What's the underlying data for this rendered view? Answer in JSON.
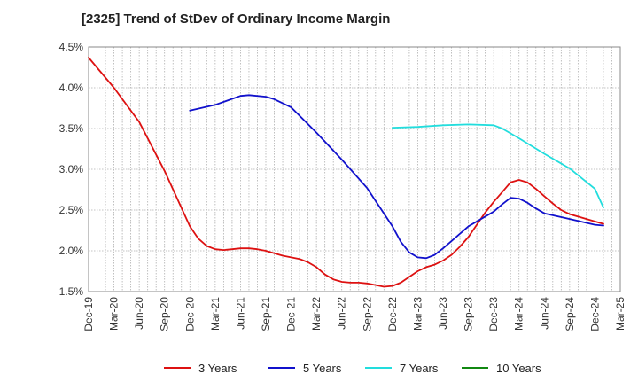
{
  "chart_data": {
    "type": "line",
    "title": "[2325]  Trend of StDev of Ordinary Income Margin",
    "xlabel": "",
    "ylabel": "",
    "x_ticks": [
      "Dec-19",
      "Mar-20",
      "Jun-20",
      "Sep-20",
      "Dec-20",
      "Mar-21",
      "Jun-21",
      "Sep-21",
      "Dec-21",
      "Mar-22",
      "Jun-22",
      "Sep-22",
      "Dec-22",
      "Mar-23",
      "Jun-23",
      "Sep-23",
      "Dec-23",
      "Mar-24",
      "Jun-24",
      "Sep-24",
      "Dec-24",
      "Mar-25"
    ],
    "y_ticks": [
      "1.5%",
      "2.0%",
      "2.5%",
      "3.0%",
      "3.5%",
      "4.0%",
      "4.5%"
    ],
    "ylim": [
      1.5,
      4.5
    ],
    "grid": true,
    "legend_position": "bottom",
    "series": [
      {
        "name": "3 Years",
        "color": "#dd1111",
        "points": [
          [
            "Dec-19",
            4.37
          ],
          [
            "Mar-20",
            4.0
          ],
          [
            "Jun-20",
            3.58
          ],
          [
            "Sep-20",
            2.98
          ],
          [
            "Dec-20",
            2.3
          ],
          [
            "Jan-21",
            2.15
          ],
          [
            "Feb-21",
            2.06
          ],
          [
            "Mar-21",
            2.02
          ],
          [
            "Apr-21",
            2.01
          ],
          [
            "May-21",
            2.02
          ],
          [
            "Jun-21",
            2.03
          ],
          [
            "Jul-21",
            2.03
          ],
          [
            "Aug-21",
            2.02
          ],
          [
            "Sep-21",
            2.0
          ],
          [
            "Oct-21",
            1.97
          ],
          [
            "Nov-21",
            1.94
          ],
          [
            "Dec-21",
            1.92
          ],
          [
            "Jan-22",
            1.9
          ],
          [
            "Feb-22",
            1.86
          ],
          [
            "Mar-22",
            1.8
          ],
          [
            "Apr-22",
            1.71
          ],
          [
            "May-22",
            1.65
          ],
          [
            "Jun-22",
            1.62
          ],
          [
            "Jul-22",
            1.61
          ],
          [
            "Aug-22",
            1.61
          ],
          [
            "Sep-22",
            1.6
          ],
          [
            "Oct-22",
            1.58
          ],
          [
            "Nov-22",
            1.56
          ],
          [
            "Dec-22",
            1.57
          ],
          [
            "Jan-23",
            1.61
          ],
          [
            "Feb-23",
            1.68
          ],
          [
            "Mar-23",
            1.75
          ],
          [
            "Apr-23",
            1.8
          ],
          [
            "May-23",
            1.83
          ],
          [
            "Jun-23",
            1.88
          ],
          [
            "Jul-23",
            1.95
          ],
          [
            "Aug-23",
            2.05
          ],
          [
            "Sep-23",
            2.17
          ],
          [
            "Oct-23",
            2.32
          ],
          [
            "Nov-23",
            2.47
          ],
          [
            "Dec-23",
            2.6
          ],
          [
            "Jan-24",
            2.72
          ],
          [
            "Feb-24",
            2.84
          ],
          [
            "Mar-24",
            2.87
          ],
          [
            "Apr-24",
            2.84
          ],
          [
            "May-24",
            2.76
          ],
          [
            "Jun-24",
            2.67
          ],
          [
            "Jul-24",
            2.58
          ],
          [
            "Aug-24",
            2.5
          ],
          [
            "Sep-24",
            2.45
          ],
          [
            "Oct-24",
            2.42
          ],
          [
            "Nov-24",
            2.39
          ],
          [
            "Dec-24",
            2.36
          ],
          [
            "Jan-25",
            2.33
          ]
        ]
      },
      {
        "name": "5 Years",
        "color": "#1111cc",
        "points": [
          [
            "Dec-20",
            3.72
          ],
          [
            "Mar-21",
            3.79
          ],
          [
            "Jun-21",
            3.9
          ],
          [
            "Jul-21",
            3.91
          ],
          [
            "Sep-21",
            3.89
          ],
          [
            "Oct-21",
            3.86
          ],
          [
            "Dec-21",
            3.76
          ],
          [
            "Mar-22",
            3.45
          ],
          [
            "Jun-22",
            3.12
          ],
          [
            "Sep-22",
            2.77
          ],
          [
            "Dec-22",
            2.3
          ],
          [
            "Jan-23",
            2.11
          ],
          [
            "Feb-23",
            1.98
          ],
          [
            "Mar-23",
            1.92
          ],
          [
            "Apr-23",
            1.91
          ],
          [
            "May-23",
            1.95
          ],
          [
            "Jun-23",
            2.03
          ],
          [
            "Sep-23",
            2.3
          ],
          [
            "Dec-23",
            2.48
          ],
          [
            "Jan-24",
            2.57
          ],
          [
            "Feb-24",
            2.65
          ],
          [
            "Mar-24",
            2.64
          ],
          [
            "Apr-24",
            2.59
          ],
          [
            "May-24",
            2.52
          ],
          [
            "Jun-24",
            2.46
          ],
          [
            "Sep-24",
            2.39
          ],
          [
            "Dec-24",
            2.32
          ],
          [
            "Jan-25",
            2.31
          ]
        ]
      },
      {
        "name": "7 Years",
        "color": "#22dddd",
        "points": [
          [
            "Dec-22",
            3.51
          ],
          [
            "Mar-23",
            3.52
          ],
          [
            "Jun-23",
            3.54
          ],
          [
            "Sep-23",
            3.55
          ],
          [
            "Dec-23",
            3.54
          ],
          [
            "Jan-24",
            3.5
          ],
          [
            "Mar-24",
            3.38
          ],
          [
            "Jun-24",
            3.19
          ],
          [
            "Sep-24",
            3.01
          ],
          [
            "Dec-24",
            2.76
          ],
          [
            "Jan-25",
            2.53
          ]
        ]
      },
      {
        "name": "10 Years",
        "color": "#118811",
        "points": []
      }
    ]
  }
}
